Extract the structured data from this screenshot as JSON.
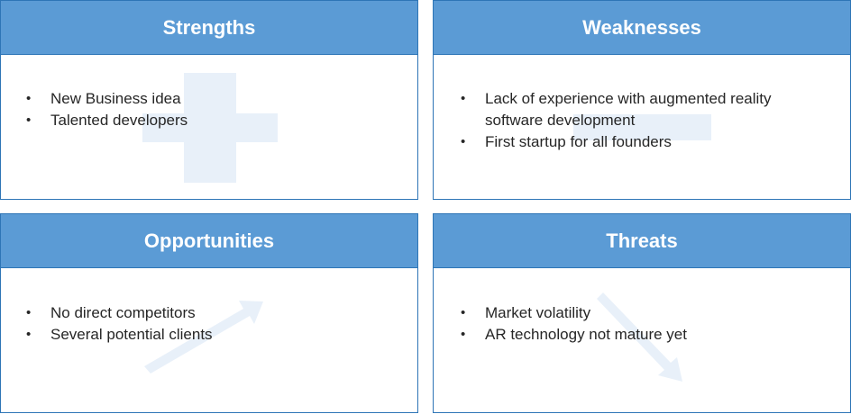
{
  "swot": {
    "strengths": {
      "title": "Strengths",
      "items": [
        "New Business idea",
        "Talented developers"
      ]
    },
    "weaknesses": {
      "title": "Weaknesses",
      "items": [
        "Lack of experience with augmented reality software development",
        "First startup for all founders"
      ]
    },
    "opportunities": {
      "title": "Opportunities",
      "items": [
        "No direct competitors",
        "Several potential clients"
      ]
    },
    "threats": {
      "title": "Threats",
      "items": [
        "Market volatility",
        "AR technology  not mature yet"
      ]
    }
  },
  "colors": {
    "header_fill": "#5b9bd5",
    "border": "#2e75b6",
    "watermark": "#e8f0f9"
  },
  "icons": [
    "plus-icon",
    "minus-icon",
    "arrow-up-right-icon",
    "arrow-down-right-icon"
  ]
}
